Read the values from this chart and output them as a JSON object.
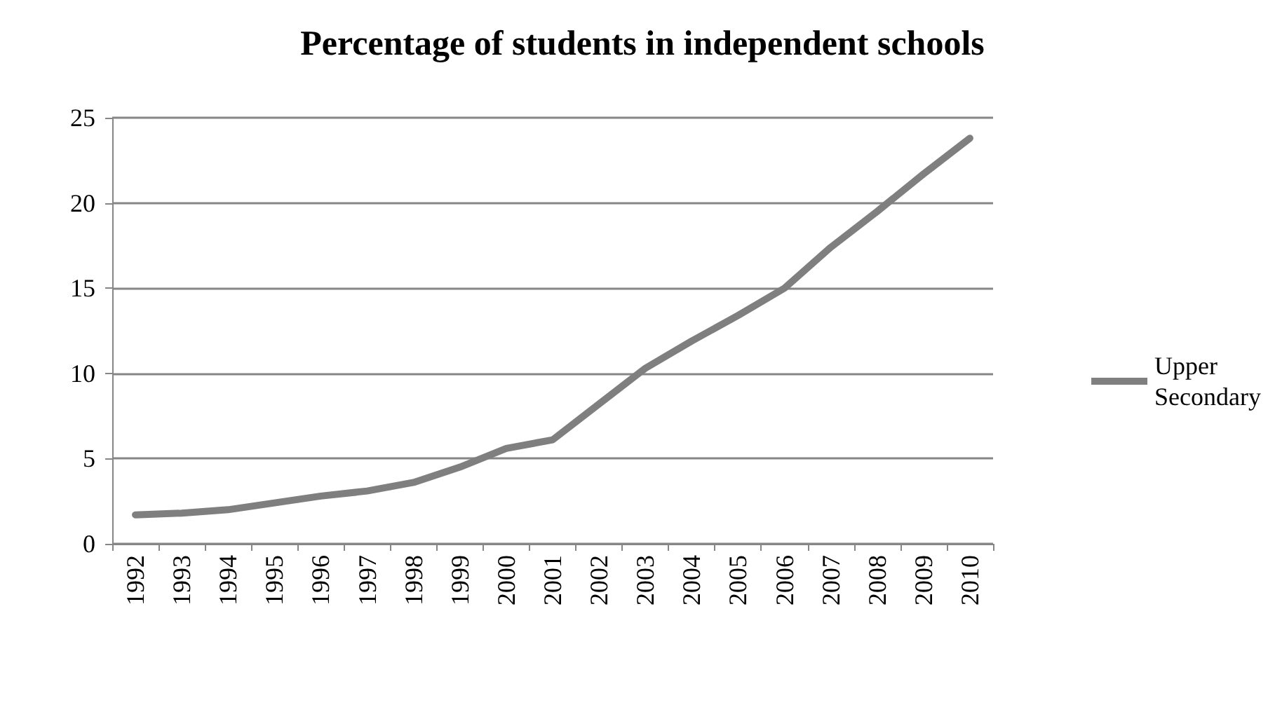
{
  "chart_data": {
    "type": "line",
    "title": "Percentage of students in independent schools",
    "categories": [
      "1992",
      "1993",
      "1994",
      "1995",
      "1996",
      "1997",
      "1998",
      "1999",
      "2000",
      "2001",
      "2002",
      "2003",
      "2004",
      "2005",
      "2006",
      "2007",
      "2008",
      "2009",
      "2010"
    ],
    "series": [
      {
        "name": "Upper Secondary",
        "color": "#7f7f7f",
        "values": [
          1.7,
          1.8,
          2.0,
          2.4,
          2.8,
          3.1,
          3.6,
          4.5,
          5.6,
          6.1,
          8.2,
          10.3,
          11.9,
          13.4,
          15.0,
          17.4,
          19.5,
          21.7,
          23.8
        ]
      }
    ],
    "ylim": [
      0,
      25
    ],
    "yticks": [
      0,
      5,
      10,
      15,
      20,
      25
    ],
    "grid": "y",
    "legend": "right",
    "marker": "none",
    "line_style": "solid"
  }
}
